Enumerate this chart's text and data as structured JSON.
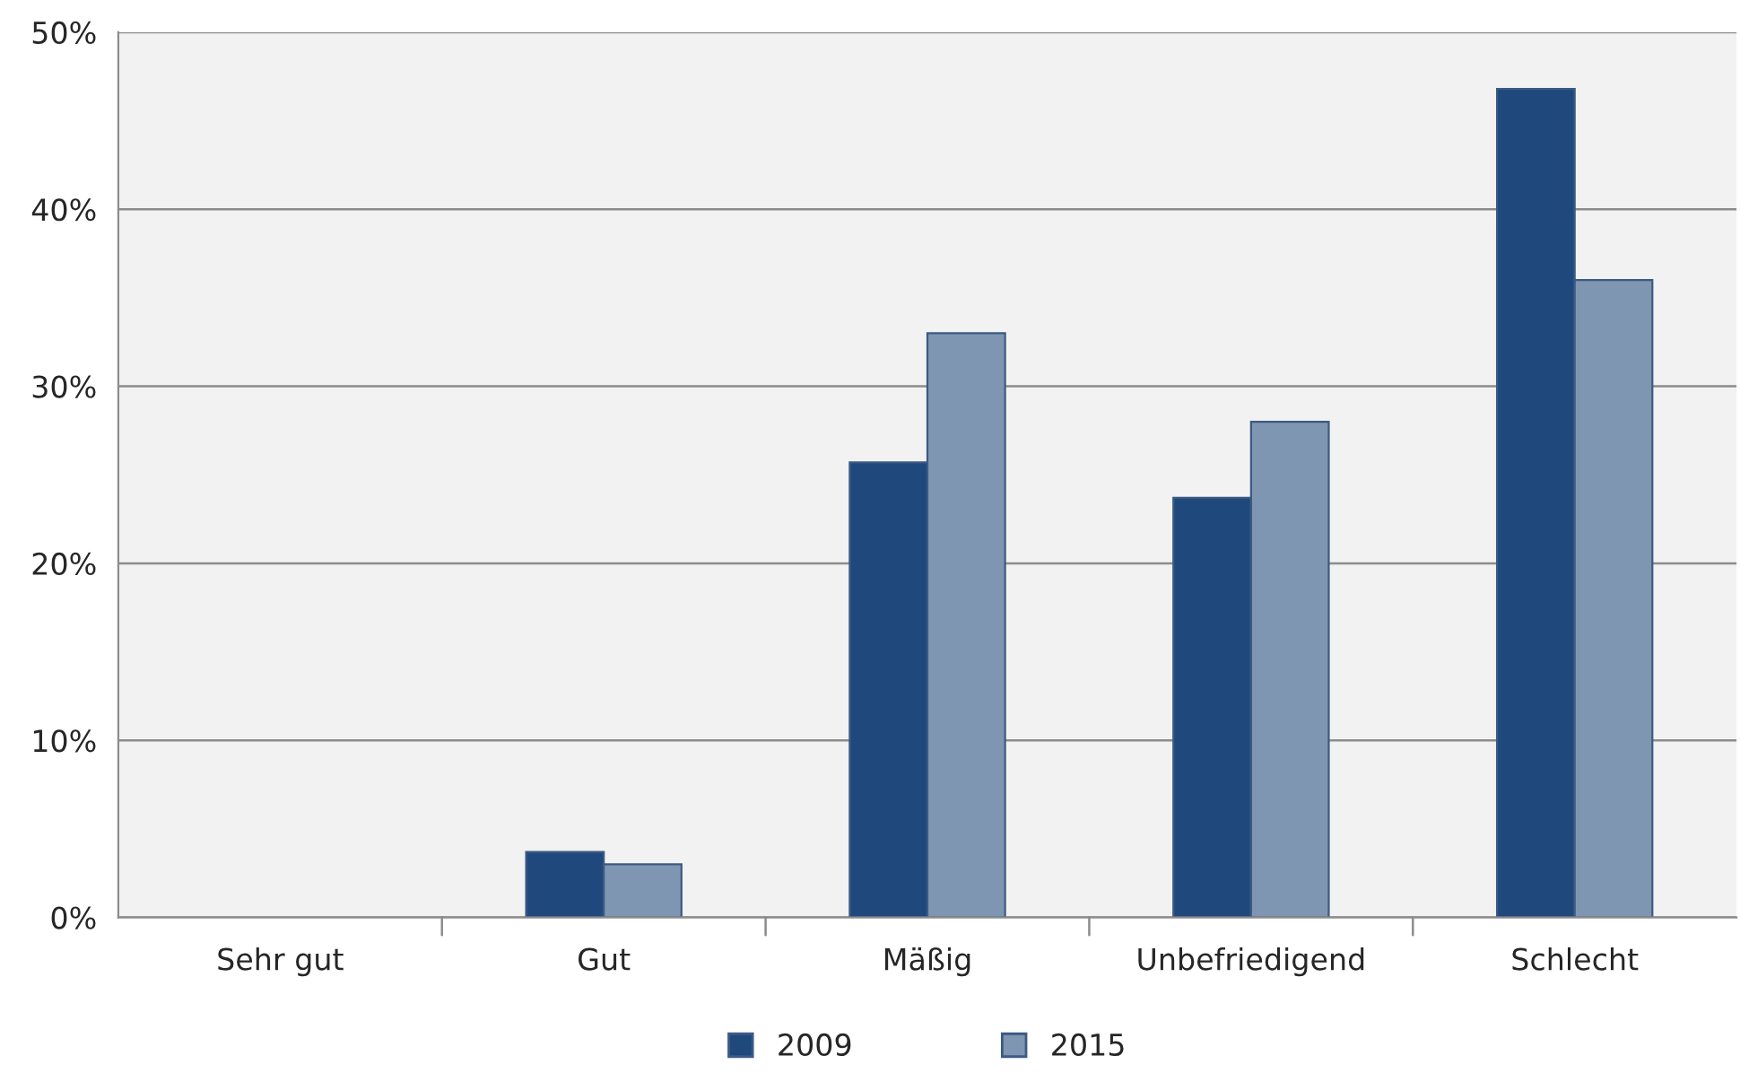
{
  "chart_data": {
    "type": "bar",
    "categories": [
      "Sehr gut",
      "Gut",
      "Mäßig",
      "Unbefriedigend",
      "Schlecht"
    ],
    "series": [
      {
        "name": "2009",
        "color": "#1f497d",
        "values": [
          0,
          3.7,
          25.7,
          23.7,
          46.8
        ]
      },
      {
        "name": "2015",
        "color": "#7f96b2",
        "values": [
          0,
          3.0,
          33.0,
          28.0,
          36.0
        ]
      }
    ],
    "ylim": [
      0,
      50
    ],
    "yticks": [
      {
        "value": 0,
        "label": "0%"
      },
      {
        "value": 10,
        "label": "10%"
      },
      {
        "value": 20,
        "label": "20%"
      },
      {
        "value": 30,
        "label": "30%"
      },
      {
        "value": 40,
        "label": "40%"
      },
      {
        "value": 50,
        "label": "50%"
      }
    ],
    "grid": "y",
    "legend": "bottom"
  }
}
